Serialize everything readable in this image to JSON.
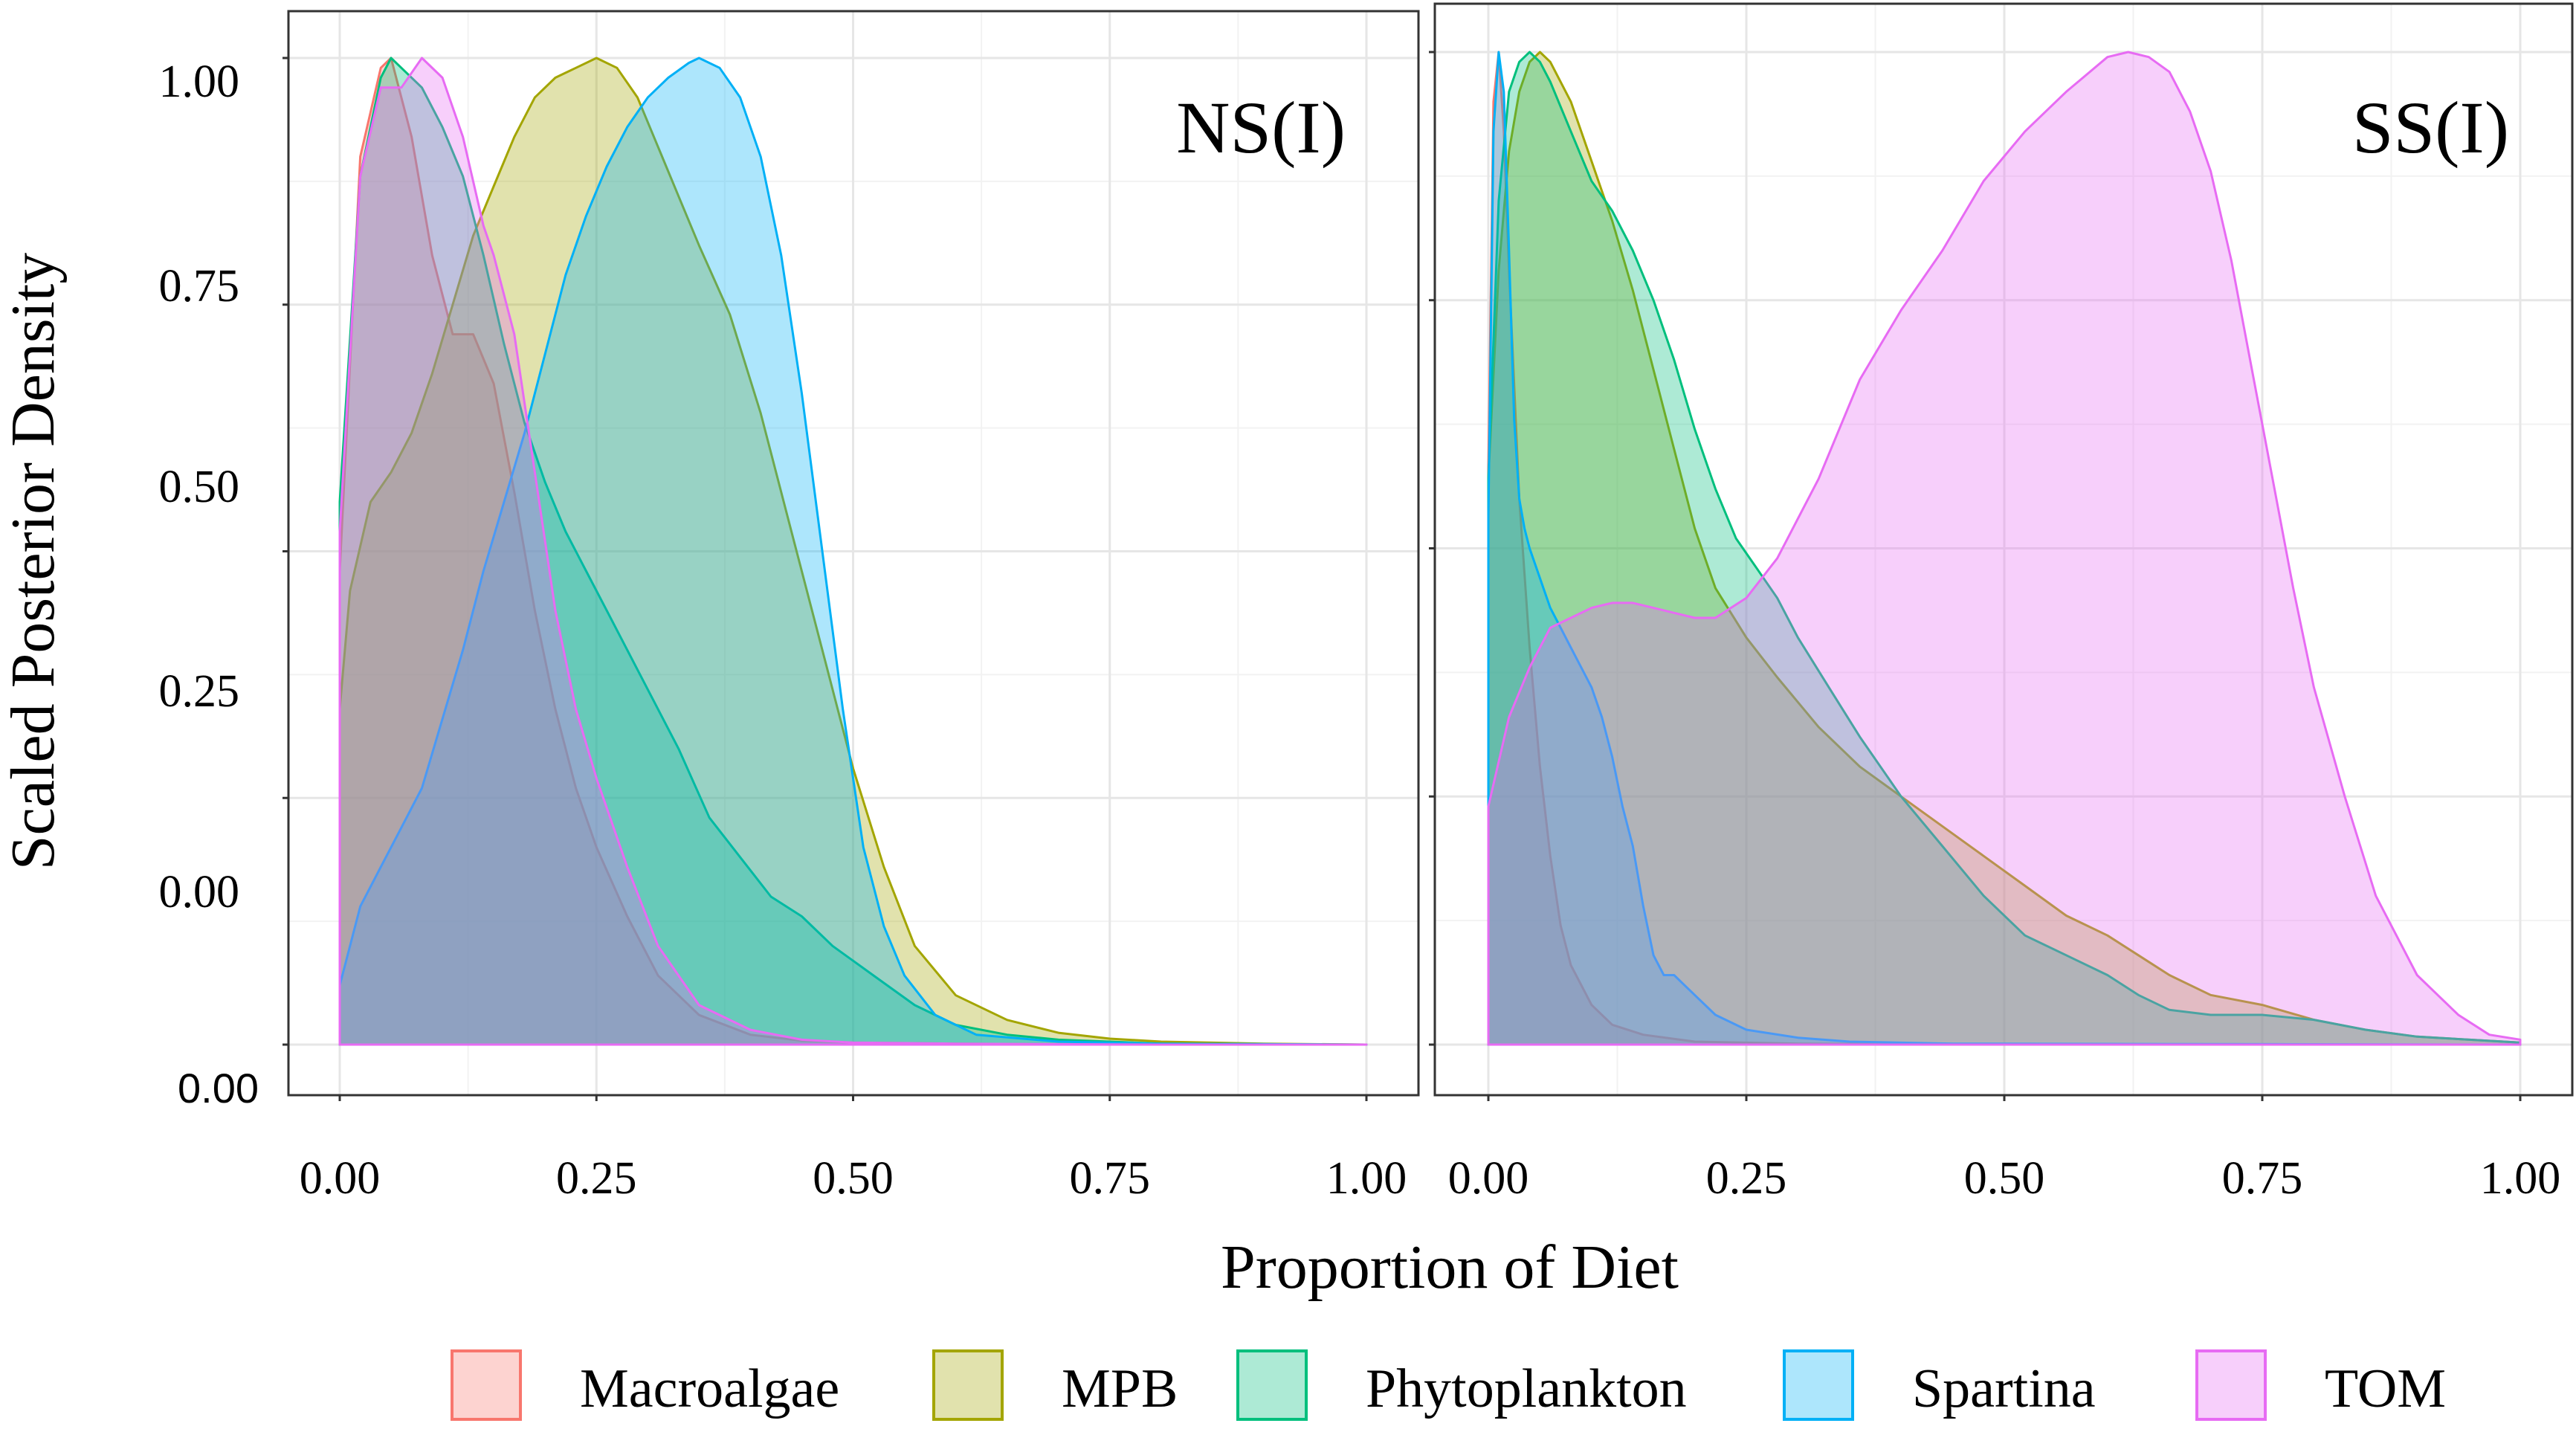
{
  "chart_data": {
    "type": "area",
    "xlabel": "Proportion of Diet",
    "ylabel": "Scaled Posterior Density",
    "xlim": [
      0,
      1
    ],
    "ylim": [
      0,
      1
    ],
    "x_ticks": [
      "0.00",
      "0.25",
      "0.50",
      "0.75",
      "1.00"
    ],
    "y_ticks": [
      "0.00",
      "0.25",
      "0.50",
      "0.75",
      "1.00"
    ],
    "y_extra_label": "0.00",
    "legend": {
      "position": "bottom",
      "entries": [
        {
          "name": "Macroalgae",
          "color": "#F8766D"
        },
        {
          "name": "MPB",
          "color": "#A3A500"
        },
        {
          "name": "Phytoplankton",
          "color": "#00BF7D"
        },
        {
          "name": "Spartina",
          "color": "#00B0F6"
        },
        {
          "name": "TOM",
          "color": "#E76BF3"
        }
      ]
    },
    "panels": [
      {
        "title": "NS(I)",
        "series": [
          {
            "name": "Macroalgae",
            "color": "#F8766D",
            "x": [
              0,
              0.02,
              0.04,
              0.05,
              0.07,
              0.09,
              0.11,
              0.13,
              0.15,
              0.17,
              0.19,
              0.21,
              0.23,
              0.25,
              0.28,
              0.31,
              0.35,
              0.4,
              0.45,
              0.5,
              0.6,
              0.8,
              1.0
            ],
            "y": [
              0.48,
              0.9,
              0.99,
              1.0,
              0.92,
              0.8,
              0.72,
              0.72,
              0.67,
              0.56,
              0.44,
              0.34,
              0.26,
              0.2,
              0.13,
              0.07,
              0.03,
              0.01,
              0.004,
              0.002,
              0.001,
              0.0,
              0.0
            ]
          },
          {
            "name": "MPB",
            "color": "#A3A500",
            "x": [
              0,
              0.01,
              0.03,
              0.05,
              0.07,
              0.09,
              0.11,
              0.13,
              0.15,
              0.17,
              0.19,
              0.21,
              0.23,
              0.25,
              0.27,
              0.29,
              0.31,
              0.33,
              0.35,
              0.38,
              0.41,
              0.44,
              0.47,
              0.5,
              0.53,
              0.56,
              0.6,
              0.65,
              0.7,
              0.75,
              0.8,
              0.9,
              1.0
            ],
            "y": [
              0.34,
              0.46,
              0.55,
              0.58,
              0.62,
              0.68,
              0.75,
              0.82,
              0.87,
              0.92,
              0.96,
              0.98,
              0.99,
              1.0,
              0.99,
              0.96,
              0.91,
              0.86,
              0.81,
              0.74,
              0.64,
              0.52,
              0.4,
              0.28,
              0.18,
              0.1,
              0.05,
              0.025,
              0.012,
              0.006,
              0.003,
              0.001,
              0.0
            ]
          },
          {
            "name": "Phytoplankton",
            "color": "#00BF7D",
            "x": [
              0,
              0.02,
              0.04,
              0.05,
              0.06,
              0.08,
              0.1,
              0.12,
              0.14,
              0.16,
              0.18,
              0.2,
              0.22,
              0.24,
              0.26,
              0.28,
              0.3,
              0.33,
              0.36,
              0.39,
              0.42,
              0.45,
              0.48,
              0.52,
              0.56,
              0.6,
              0.65,
              0.7,
              0.8,
              1.0
            ],
            "y": [
              0.55,
              0.88,
              0.98,
              1.0,
              0.99,
              0.97,
              0.93,
              0.88,
              0.8,
              0.71,
              0.63,
              0.57,
              0.52,
              0.48,
              0.44,
              0.4,
              0.36,
              0.3,
              0.23,
              0.19,
              0.15,
              0.13,
              0.1,
              0.07,
              0.04,
              0.02,
              0.01,
              0.005,
              0.001,
              0.0
            ]
          },
          {
            "name": "Spartina",
            "color": "#00B0F6",
            "x": [
              0,
              0.02,
              0.04,
              0.06,
              0.08,
              0.1,
              0.12,
              0.14,
              0.16,
              0.18,
              0.2,
              0.22,
              0.24,
              0.26,
              0.28,
              0.3,
              0.32,
              0.34,
              0.35,
              0.37,
              0.39,
              0.41,
              0.43,
              0.45,
              0.47,
              0.49,
              0.51,
              0.53,
              0.55,
              0.58,
              0.62,
              0.7,
              0.8,
              1.0
            ],
            "y": [
              0.06,
              0.14,
              0.18,
              0.22,
              0.26,
              0.33,
              0.4,
              0.48,
              0.55,
              0.62,
              0.7,
              0.78,
              0.84,
              0.89,
              0.93,
              0.96,
              0.98,
              0.995,
              1.0,
              0.99,
              0.96,
              0.9,
              0.8,
              0.66,
              0.5,
              0.34,
              0.2,
              0.12,
              0.07,
              0.03,
              0.01,
              0.003,
              0.001,
              0.0
            ]
          },
          {
            "name": "TOM",
            "color": "#E76BF3",
            "x": [
              0,
              0.02,
              0.04,
              0.06,
              0.08,
              0.1,
              0.12,
              0.14,
              0.15,
              0.17,
              0.19,
              0.21,
              0.23,
              0.25,
              0.28,
              0.31,
              0.35,
              0.4,
              0.45,
              0.5,
              0.6,
              0.8,
              1.0
            ],
            "y": [
              0.52,
              0.88,
              0.97,
              0.97,
              1.0,
              0.98,
              0.92,
              0.83,
              0.8,
              0.72,
              0.58,
              0.44,
              0.34,
              0.27,
              0.18,
              0.1,
              0.04,
              0.015,
              0.005,
              0.002,
              0.001,
              0.0,
              0.0
            ]
          }
        ]
      },
      {
        "title": "SS(I)",
        "series": [
          {
            "name": "Macroalgae",
            "color": "#F8766D",
            "x": [
              0,
              0.005,
              0.01,
              0.015,
              0.02,
              0.03,
              0.04,
              0.05,
              0.06,
              0.07,
              0.08,
              0.1,
              0.12,
              0.15,
              0.2,
              0.3,
              0.5,
              1.0
            ],
            "y": [
              0.58,
              0.95,
              1.0,
              0.92,
              0.78,
              0.55,
              0.4,
              0.28,
              0.19,
              0.12,
              0.08,
              0.04,
              0.02,
              0.01,
              0.003,
              0.001,
              0.0,
              0.0
            ]
          },
          {
            "name": "MPB",
            "color": "#A3A500",
            "x": [
              0,
              0.01,
              0.02,
              0.03,
              0.04,
              0.05,
              0.06,
              0.08,
              0.1,
              0.12,
              0.14,
              0.16,
              0.18,
              0.2,
              0.22,
              0.25,
              0.28,
              0.32,
              0.36,
              0.4,
              0.44,
              0.48,
              0.52,
              0.56,
              0.6,
              0.63,
              0.66,
              0.7,
              0.75,
              0.8,
              0.85,
              0.9,
              1.0
            ],
            "y": [
              0.57,
              0.78,
              0.9,
              0.96,
              0.99,
              1.0,
              0.99,
              0.95,
              0.89,
              0.83,
              0.76,
              0.68,
              0.6,
              0.52,
              0.46,
              0.41,
              0.37,
              0.32,
              0.28,
              0.25,
              0.22,
              0.19,
              0.16,
              0.13,
              0.11,
              0.09,
              0.07,
              0.05,
              0.04,
              0.025,
              0.015,
              0.008,
              0.002
            ]
          },
          {
            "name": "Phytoplankton",
            "color": "#00BF7D",
            "x": [
              0,
              0.01,
              0.02,
              0.03,
              0.04,
              0.05,
              0.06,
              0.08,
              0.1,
              0.12,
              0.14,
              0.16,
              0.18,
              0.2,
              0.22,
              0.24,
              0.26,
              0.28,
              0.3,
              0.33,
              0.36,
              0.4,
              0.44,
              0.48,
              0.52,
              0.56,
              0.6,
              0.63,
              0.66,
              0.7,
              0.75,
              0.8,
              0.85,
              0.9,
              1.0
            ],
            "y": [
              0.57,
              0.85,
              0.96,
              0.99,
              1.0,
              0.99,
              0.97,
              0.92,
              0.87,
              0.84,
              0.8,
              0.75,
              0.69,
              0.62,
              0.56,
              0.51,
              0.48,
              0.45,
              0.41,
              0.36,
              0.31,
              0.25,
              0.2,
              0.15,
              0.11,
              0.09,
              0.07,
              0.05,
              0.035,
              0.03,
              0.03,
              0.025,
              0.015,
              0.008,
              0.002
            ]
          },
          {
            "name": "Spartina",
            "color": "#00B0F6",
            "x": [
              0,
              0.005,
              0.01,
              0.015,
              0.02,
              0.025,
              0.03,
              0.035,
              0.04,
              0.05,
              0.06,
              0.07,
              0.08,
              0.09,
              0.1,
              0.11,
              0.12,
              0.13,
              0.14,
              0.15,
              0.16,
              0.17,
              0.18,
              0.19,
              0.2,
              0.22,
              0.25,
              0.3,
              0.35,
              0.45,
              1.0
            ],
            "y": [
              0.53,
              0.92,
              1.0,
              0.96,
              0.8,
              0.63,
              0.55,
              0.52,
              0.5,
              0.47,
              0.44,
              0.42,
              0.4,
              0.38,
              0.36,
              0.33,
              0.29,
              0.24,
              0.2,
              0.14,
              0.09,
              0.07,
              0.07,
              0.06,
              0.05,
              0.03,
              0.015,
              0.007,
              0.003,
              0.001,
              0.0
            ]
          },
          {
            "name": "TOM",
            "color": "#E76BF3",
            "x": [
              0,
              0.02,
              0.04,
              0.06,
              0.08,
              0.1,
              0.12,
              0.14,
              0.16,
              0.18,
              0.2,
              0.22,
              0.25,
              0.28,
              0.32,
              0.36,
              0.4,
              0.44,
              0.48,
              0.52,
              0.56,
              0.6,
              0.62,
              0.64,
              0.66,
              0.68,
              0.7,
              0.72,
              0.74,
              0.76,
              0.78,
              0.8,
              0.83,
              0.86,
              0.9,
              0.94,
              0.97,
              1.0
            ],
            "y": [
              0.24,
              0.33,
              0.38,
              0.42,
              0.43,
              0.44,
              0.445,
              0.445,
              0.44,
              0.435,
              0.43,
              0.43,
              0.45,
              0.49,
              0.57,
              0.67,
              0.74,
              0.8,
              0.87,
              0.92,
              0.96,
              0.995,
              1.0,
              0.995,
              0.98,
              0.94,
              0.88,
              0.79,
              0.68,
              0.57,
              0.46,
              0.36,
              0.25,
              0.15,
              0.07,
              0.03,
              0.01,
              0.005
            ]
          }
        ]
      }
    ]
  }
}
